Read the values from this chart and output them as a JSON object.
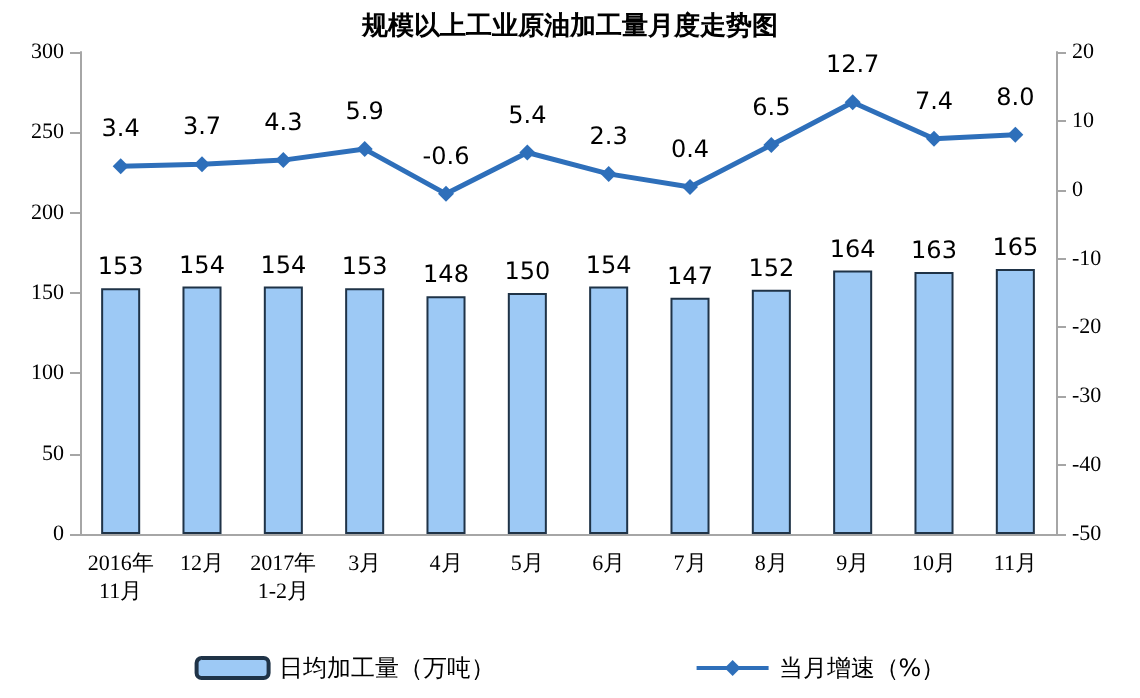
{
  "chart_data": {
    "type": "bar",
    "title": "规模以上工业原油加工量月度走势图",
    "categories": [
      "2016年\n11月",
      "12月",
      "2017年\n1-2月",
      "3月",
      "4月",
      "5月",
      "6月",
      "7月",
      "8月",
      "9月",
      "10月",
      "11月"
    ],
    "series": [
      {
        "name": "日均加工量（万吨）",
        "color": "#9dc9f5",
        "values": [
          153,
          154,
          154,
          153,
          148,
          150,
          154,
          147,
          152,
          164,
          163,
          165
        ]
      },
      {
        "name": "当月增速（%）",
        "type": "line",
        "axis": "y2",
        "color": "#2e6fba",
        "marker": "diamond",
        "values": [
          3.4,
          3.7,
          4.3,
          5.9,
          -0.6,
          5.4,
          2.3,
          0.4,
          6.5,
          12.7,
          7.4,
          8.0
        ],
        "value_labels": [
          "3.4",
          "3.7",
          "4.3",
          "5.9",
          "-0.6",
          "5.4",
          "2.3",
          "0.4",
          "6.5",
          "12.7",
          "7.4",
          "8.0"
        ]
      }
    ],
    "data_labels": true,
    "ylim": [
      0,
      300
    ],
    "yticks": [
      0,
      50,
      100,
      150,
      200,
      250,
      300
    ],
    "y2lim": [
      -50,
      20
    ],
    "y2ticks": [
      -50,
      -40,
      -30,
      -20,
      -10,
      0,
      10,
      20
    ],
    "grid": false,
    "legend": "bottom"
  }
}
